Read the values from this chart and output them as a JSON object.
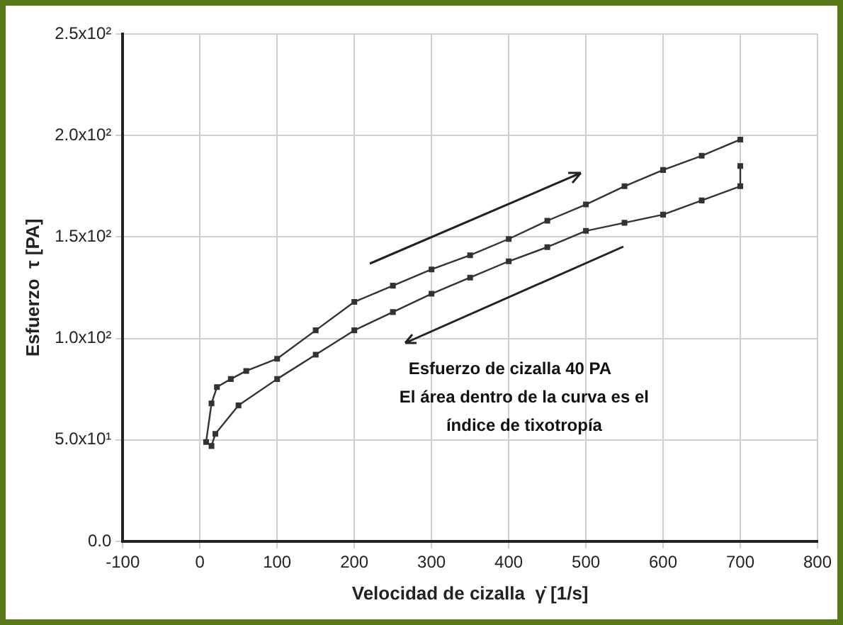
{
  "chart_data": {
    "type": "line",
    "xlabel": "Velocidad de cizalla  γ̇ [1/s]",
    "ylabel": "Esfuerzo  τ [PA]",
    "annotations": [
      "Esfuerzo de cizalla 40 PA",
      "El área dentro de la curva es el",
      "índice de tixotropía"
    ],
    "series": [
      {
        "color": "#333333",
        "x": [
          8,
          15,
          22,
          40,
          60,
          100,
          150,
          200,
          250,
          300,
          350,
          400,
          450,
          500,
          550,
          600,
          650,
          700
        ],
        "values": [
          49,
          68,
          76,
          80,
          84,
          90,
          104,
          118,
          126,
          134,
          141,
          149,
          158,
          166,
          175,
          183,
          190,
          198
        ]
      },
      {
        "color": "#333333",
        "x": [
          700,
          700,
          650,
          600,
          550,
          500,
          450,
          400,
          350,
          300,
          250,
          200,
          150,
          100,
          50,
          20,
          15
        ],
        "values": [
          185,
          175,
          168,
          161,
          157,
          153,
          145,
          138,
          130,
          122,
          113,
          104,
          92,
          80,
          67,
          53,
          47
        ]
      }
    ],
    "xlim": [
      -100,
      800
    ],
    "xticks": [
      -100,
      0,
      100,
      200,
      300,
      400,
      500,
      600,
      700,
      800
    ],
    "ylim": [
      0,
      250
    ],
    "yticks": [
      {
        "value": 0,
        "label": "0.0"
      },
      {
        "value": 50,
        "label": "5.0x10¹"
      },
      {
        "value": 100,
        "label": "1.0x10²"
      },
      {
        "value": 150,
        "label": "1.5x10²"
      },
      {
        "value": 200,
        "label": "2.0x10²"
      },
      {
        "value": 250,
        "label": "2.5x10²"
      }
    ],
    "grid": true,
    "legend": false,
    "marker": "square",
    "line_style": "solid"
  }
}
